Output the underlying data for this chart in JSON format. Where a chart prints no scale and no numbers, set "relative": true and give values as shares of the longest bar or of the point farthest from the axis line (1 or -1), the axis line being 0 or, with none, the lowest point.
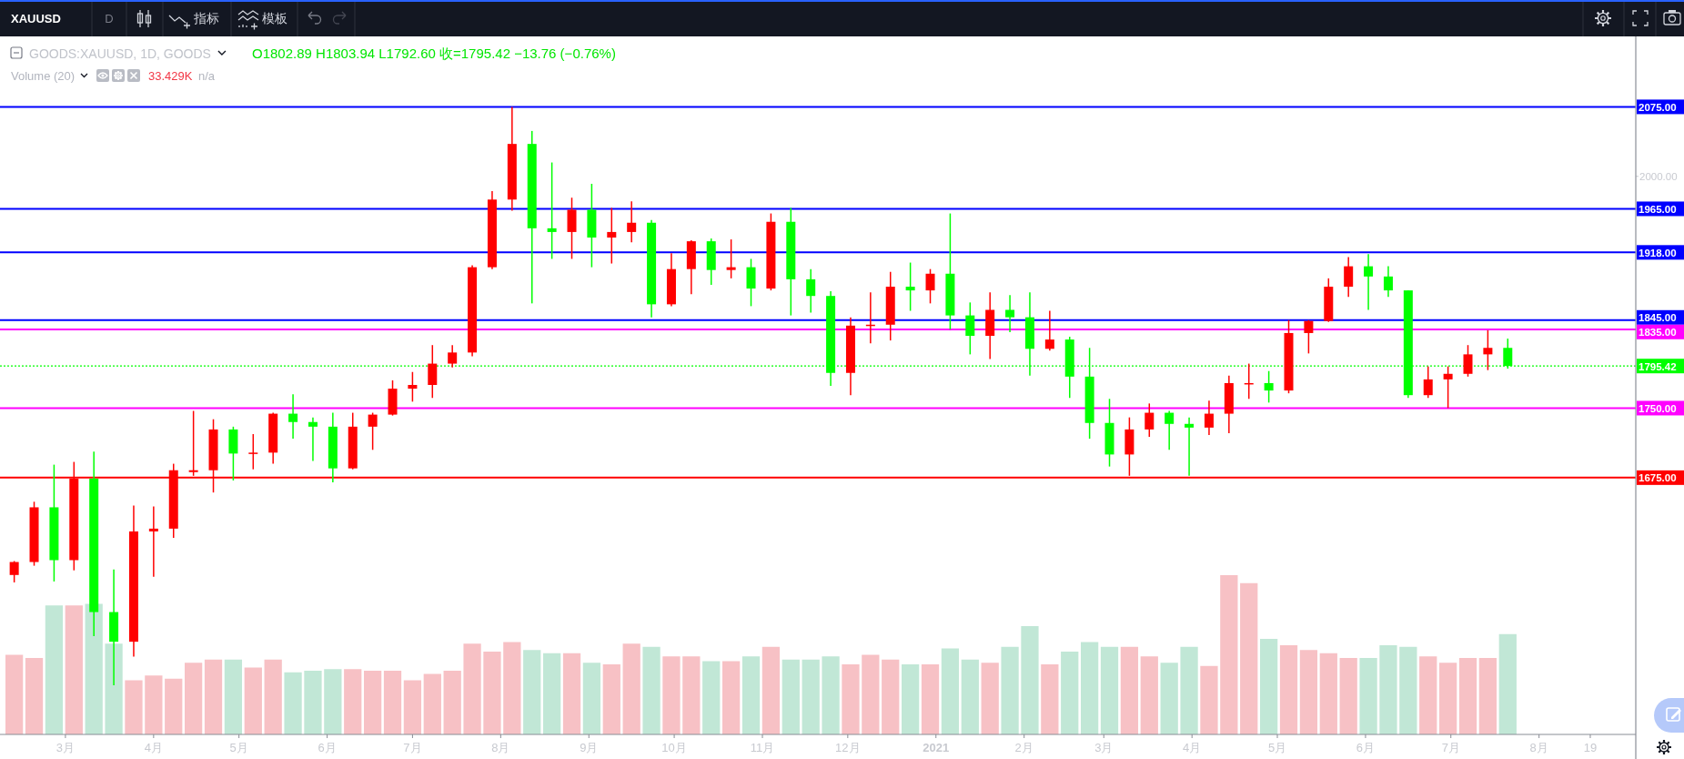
{
  "chart_data": [
    {
      "type": "candlestick",
      "title": "GOODS:XAUUSD, 1D, GOODS",
      "subtitle": "O1802.89 H1803.94 L1792.60 收=1795.42 −13.76 (−0.76%)",
      "annotations": [
        "XAUUSD",
        "D",
        "指标",
        "模板"
      ],
      "x": [
        "2020-02-12",
        "2020-02-19",
        "2020-02-26",
        "2020-03-04",
        "2020-03-11",
        "2020-03-18",
        "2020-03-25",
        "2020-04-01",
        "2020-04-08",
        "2020-04-15",
        "2020-04-22",
        "2020-04-29",
        "2020-05-06",
        "2020-05-13",
        "2020-05-20",
        "2020-05-27",
        "2020-06-03",
        "2020-06-10",
        "2020-06-17",
        "2020-06-24",
        "2020-07-01",
        "2020-07-08",
        "2020-07-15",
        "2020-07-22",
        "2020-07-29",
        "2020-08-05",
        "2020-08-12",
        "2020-08-19",
        "2020-08-26",
        "2020-09-02",
        "2020-09-09",
        "2020-09-16",
        "2020-09-23",
        "2020-09-30",
        "2020-10-07",
        "2020-10-14",
        "2020-10-21",
        "2020-10-28",
        "2020-11-04",
        "2020-11-11",
        "2020-11-18",
        "2020-11-25",
        "2020-12-02",
        "2020-12-09",
        "2020-12-16",
        "2020-12-23",
        "2020-12-30",
        "2021-01-06",
        "2021-01-13",
        "2021-01-20",
        "2021-01-27",
        "2021-02-03",
        "2021-02-10",
        "2021-02-17",
        "2021-02-24",
        "2021-03-03",
        "2021-03-10",
        "2021-03-17",
        "2021-03-24",
        "2021-03-31",
        "2021-04-07",
        "2021-04-14",
        "2021-04-21",
        "2021-04-28",
        "2021-05-05",
        "2021-05-12",
        "2021-05-19",
        "2021-05-26",
        "2021-06-02",
        "2021-06-09",
        "2021-06-16",
        "2021-06-23",
        "2021-06-30",
        "2021-07-07",
        "2021-07-14",
        "2021-07-21"
      ],
      "ohlc": [
        [
          1570,
          1585,
          1562,
          1584
        ],
        [
          1584,
          1649,
          1580,
          1643
        ],
        [
          1643,
          1689,
          1563,
          1586
        ],
        [
          1586,
          1692,
          1575,
          1674
        ],
        [
          1674,
          1703,
          1504,
          1530
        ],
        [
          1530,
          1576,
          1451,
          1498
        ],
        [
          1498,
          1645,
          1482,
          1617
        ],
        [
          1617,
          1644,
          1568,
          1620
        ],
        [
          1620,
          1690,
          1610,
          1683
        ],
        [
          1681,
          1747,
          1677,
          1683
        ],
        [
          1683,
          1738,
          1659,
          1727
        ],
        [
          1727,
          1730,
          1672,
          1701
        ],
        [
          1701,
          1722,
          1684,
          1702
        ],
        [
          1702,
          1745,
          1690,
          1744
        ],
        [
          1744,
          1765,
          1717,
          1735
        ],
        [
          1735,
          1740,
          1693,
          1730
        ],
        [
          1730,
          1745,
          1670,
          1685
        ],
        [
          1685,
          1745,
          1684,
          1730
        ],
        [
          1730,
          1745,
          1705,
          1743
        ],
        [
          1743,
          1780,
          1742,
          1771
        ],
        [
          1771,
          1789,
          1757,
          1775
        ],
        [
          1775,
          1818,
          1761,
          1798
        ],
        [
          1798,
          1818,
          1794,
          1810
        ],
        [
          1810,
          1904,
          1806,
          1902
        ],
        [
          1902,
          1984,
          1900,
          1975
        ],
        [
          1975,
          2075,
          1963,
          2035
        ],
        [
          2035,
          2049,
          1863,
          1944
        ],
        [
          1944,
          2015,
          1911,
          1940
        ],
        [
          1940,
          1977,
          1911,
          1964
        ],
        [
          1964,
          1992,
          1902,
          1934
        ],
        [
          1934,
          1966,
          1906,
          1940
        ],
        [
          1940,
          1973,
          1929,
          1950
        ],
        [
          1950,
          1953,
          1848,
          1862
        ],
        [
          1862,
          1917,
          1860,
          1900
        ],
        [
          1900,
          1931,
          1873,
          1930
        ],
        [
          1930,
          1933,
          1883,
          1899
        ],
        [
          1899,
          1932,
          1890,
          1902
        ],
        [
          1902,
          1911,
          1860,
          1879
        ],
        [
          1879,
          1960,
          1877,
          1951
        ],
        [
          1951,
          1966,
          1850,
          1889
        ],
        [
          1889,
          1900,
          1853,
          1871
        ],
        [
          1871,
          1876,
          1774,
          1788
        ],
        [
          1788,
          1848,
          1764,
          1839
        ],
        [
          1839,
          1875,
          1820,
          1840
        ],
        [
          1840,
          1897,
          1823,
          1881
        ],
        [
          1881,
          1907,
          1855,
          1877
        ],
        [
          1877,
          1900,
          1863,
          1895
        ],
        [
          1895,
          1960,
          1835,
          1850
        ],
        [
          1850,
          1864,
          1808,
          1828
        ],
        [
          1828,
          1875,
          1803,
          1856
        ],
        [
          1856,
          1872,
          1832,
          1848
        ],
        [
          1848,
          1875,
          1785,
          1814
        ],
        [
          1814,
          1855,
          1812,
          1824
        ],
        [
          1824,
          1827,
          1761,
          1784
        ],
        [
          1784,
          1815,
          1717,
          1734
        ],
        [
          1734,
          1760,
          1687,
          1700
        ],
        [
          1700,
          1740,
          1677,
          1727
        ],
        [
          1727,
          1755,
          1719,
          1745
        ],
        [
          1745,
          1747,
          1705,
          1733
        ],
        [
          1733,
          1740,
          1677,
          1729
        ],
        [
          1729,
          1758,
          1721,
          1744
        ],
        [
          1744,
          1785,
          1723,
          1777
        ],
        [
          1776,
          1798,
          1760,
          1777
        ],
        [
          1777,
          1790,
          1756,
          1769
        ],
        [
          1769,
          1845,
          1766,
          1831
        ],
        [
          1831,
          1845,
          1809,
          1844
        ],
        [
          1844,
          1890,
          1843,
          1881
        ],
        [
          1881,
          1913,
          1870,
          1903
        ],
        [
          1903,
          1916,
          1856,
          1892
        ],
        [
          1892,
          1903,
          1870,
          1877
        ],
        [
          1877,
          1877,
          1761,
          1764
        ],
        [
          1764,
          1795,
          1761,
          1781
        ],
        [
          1781,
          1795,
          1750,
          1787
        ],
        [
          1787,
          1818,
          1784,
          1808
        ],
        [
          1808,
          1834,
          1791,
          1815
        ],
        [
          1815,
          1825,
          1792.6,
          1795.42
        ]
      ],
      "colors": [
        "#ff0000",
        "#ff0000",
        "#00ff00",
        "#ff0000",
        "#00ff00",
        "#00ff00",
        "#ff0000",
        "#ff0000",
        "#ff0000",
        "#ff0000",
        "#ff0000",
        "#00ff00",
        "#ff0000",
        "#ff0000",
        "#00ff00",
        "#00ff00",
        "#00ff00",
        "#ff0000",
        "#ff0000",
        "#ff0000",
        "#ff0000",
        "#ff0000",
        "#ff0000",
        "#ff0000",
        "#ff0000",
        "#ff0000",
        "#00ff00",
        "#00ff00",
        "#ff0000",
        "#00ff00",
        "#ff0000",
        "#ff0000",
        "#00ff00",
        "#ff0000",
        "#ff0000",
        "#00ff00",
        "#ff0000",
        "#00ff00",
        "#ff0000",
        "#00ff00",
        "#00ff00",
        "#00ff00",
        "#ff0000",
        "#ff0000",
        "#ff0000",
        "#00ff00",
        "#ff0000",
        "#00ff00",
        "#00ff00",
        "#ff0000",
        "#00ff00",
        "#00ff00",
        "#ff0000",
        "#00ff00",
        "#00ff00",
        "#00ff00",
        "#ff0000",
        "#ff0000",
        "#00ff00",
        "#00ff00",
        "#ff0000",
        "#ff0000",
        "#ff0000",
        "#00ff00",
        "#ff0000",
        "#ff0000",
        "#ff0000",
        "#ff0000",
        "#00ff00",
        "#00ff00",
        "#00ff00",
        "#ff0000",
        "#ff0000",
        "#ff0000",
        "#ff0000",
        "#00ff00"
      ],
      "xlim": [
        "2020-02-07",
        "2021-09-04"
      ],
      "xticks": [
        {
          "value": "2020-03-01",
          "label": "3月"
        },
        {
          "value": "2020-04-01",
          "label": "4月"
        },
        {
          "value": "2020-05-01",
          "label": "5月"
        },
        {
          "value": "2020-06-01",
          "label": "6月"
        },
        {
          "value": "2020-07-01",
          "label": "7月"
        },
        {
          "value": "2020-08-01",
          "label": "8月"
        },
        {
          "value": "2020-09-01",
          "label": "9月"
        },
        {
          "value": "2020-10-01",
          "label": "10月"
        },
        {
          "value": "2020-11-01",
          "label": "11月"
        },
        {
          "value": "2020-12-01",
          "label": "12月"
        },
        {
          "value": "2021-01-01",
          "label": "2021"
        },
        {
          "value": "2021-02-01",
          "label": "2月"
        },
        {
          "value": "2021-03-01",
          "label": "3月"
        },
        {
          "value": "2021-04-01",
          "label": "4月"
        },
        {
          "value": "2021-05-01",
          "label": "5月"
        },
        {
          "value": "2021-06-01",
          "label": "6月"
        },
        {
          "value": "2021-07-01",
          "label": "7月"
        },
        {
          "value": "2021-08-01",
          "label": "8月"
        },
        {
          "value": "2021-08-19",
          "label": "19"
        }
      ],
      "ylim": [
        1398,
        2151
      ],
      "yticks": [
        {
          "value": 2075,
          "label": "2075.00"
        },
        {
          "value": 2000,
          "label": "2000.00"
        },
        {
          "value": 1965,
          "label": "1965.00"
        },
        {
          "value": 1918,
          "label": "1918.00"
        },
        {
          "value": 1845,
          "label": "1845.00"
        },
        {
          "value": 1835,
          "label": "1835.00"
        },
        {
          "value": 1795.42,
          "label": "1795.42"
        },
        {
          "value": 1750,
          "label": "1750.00"
        },
        {
          "value": 1675,
          "label": "1675.00"
        }
      ],
      "ref_lines": [
        {
          "axis": "y",
          "value": 2075,
          "color": "#0000ff"
        },
        {
          "axis": "y",
          "value": 1965,
          "color": "#0000ff"
        },
        {
          "axis": "y",
          "value": 1918,
          "color": "#0000ff"
        },
        {
          "axis": "y",
          "value": 1845,
          "color": "#0000ff"
        },
        {
          "axis": "y",
          "value": 1835,
          "color": "#ff00ff"
        },
        {
          "axis": "y",
          "value": 1795.42,
          "color": "#00ff00",
          "line_style": "dotted"
        },
        {
          "axis": "y",
          "value": 1750,
          "color": "#ff00ff"
        },
        {
          "axis": "y",
          "value": 1675,
          "color": "#ff0000"
        }
      ]
    },
    {
      "type": "bar",
      "relative": true,
      "tick_labels": false,
      "annotations": [
        "33.429K",
        "n/a"
      ],
      "x": [
        "2020-02-12",
        "2020-02-19",
        "2020-02-26",
        "2020-03-04",
        "2020-03-11",
        "2020-03-18",
        "2020-03-25",
        "2020-04-01",
        "2020-04-08",
        "2020-04-15",
        "2020-04-22",
        "2020-04-29",
        "2020-05-06",
        "2020-05-13",
        "2020-05-20",
        "2020-05-27",
        "2020-06-03",
        "2020-06-10",
        "2020-06-17",
        "2020-06-24",
        "2020-07-01",
        "2020-07-08",
        "2020-07-15",
        "2020-07-22",
        "2020-07-29",
        "2020-08-05",
        "2020-08-12",
        "2020-08-19",
        "2020-08-26",
        "2020-09-02",
        "2020-09-09",
        "2020-09-16",
        "2020-09-23",
        "2020-09-30",
        "2020-10-07",
        "2020-10-14",
        "2020-10-21",
        "2020-10-28",
        "2020-11-04",
        "2020-11-11",
        "2020-11-18",
        "2020-11-25",
        "2020-12-02",
        "2020-12-09",
        "2020-12-16",
        "2020-12-23",
        "2020-12-30",
        "2021-01-06",
        "2021-01-13",
        "2021-01-20",
        "2021-01-27",
        "2021-02-03",
        "2021-02-10",
        "2021-02-17",
        "2021-02-24",
        "2021-03-03",
        "2021-03-10",
        "2021-03-17",
        "2021-03-24",
        "2021-03-31",
        "2021-04-07",
        "2021-04-14",
        "2021-04-21",
        "2021-04-28",
        "2021-05-05",
        "2021-05-12",
        "2021-05-19",
        "2021-05-26",
        "2021-06-02",
        "2021-06-09",
        "2021-06-16",
        "2021-06-23",
        "2021-06-30",
        "2021-07-07",
        "2021-07-14",
        "2021-07-21"
      ],
      "xlim": [
        "2020-02-07",
        "2021-09-04"
      ],
      "series": [
        {
          "name": "Volume (20)",
          "values": [
            0.5,
            0.48,
            0.81,
            0.81,
            0.82,
            0.57,
            0.34,
            0.37,
            0.35,
            0.45,
            0.47,
            0.47,
            0.42,
            0.47,
            0.39,
            0.4,
            0.41,
            0.41,
            0.4,
            0.4,
            0.34,
            0.38,
            0.4,
            0.57,
            0.52,
            0.58,
            0.53,
            0.51,
            0.51,
            0.45,
            0.44,
            0.57,
            0.55,
            0.49,
            0.49,
            0.46,
            0.46,
            0.49,
            0.55,
            0.47,
            0.47,
            0.49,
            0.44,
            0.5,
            0.47,
            0.44,
            0.44,
            0.54,
            0.47,
            0.45,
            0.55,
            0.68,
            0.44,
            0.52,
            0.58,
            0.55,
            0.55,
            0.49,
            0.45,
            0.55,
            0.43,
            1,
            0.95,
            0.6,
            0.56,
            0.53,
            0.51,
            0.48,
            0.48,
            0.56,
            0.55,
            0.49,
            0.45,
            0.48,
            0.48,
            0.63
          ],
          "colors": [
            "#f7c1c5",
            "#f7c1c5",
            "#c1e7d6",
            "#f7c1c5",
            "#c1e7d6",
            "#c1e7d6",
            "#f7c1c5",
            "#f7c1c5",
            "#f7c1c5",
            "#f7c1c5",
            "#f7c1c5",
            "#c1e7d6",
            "#f7c1c5",
            "#f7c1c5",
            "#c1e7d6",
            "#c1e7d6",
            "#c1e7d6",
            "#f7c1c5",
            "#f7c1c5",
            "#f7c1c5",
            "#f7c1c5",
            "#f7c1c5",
            "#f7c1c5",
            "#f7c1c5",
            "#f7c1c5",
            "#f7c1c5",
            "#c1e7d6",
            "#c1e7d6",
            "#f7c1c5",
            "#c1e7d6",
            "#f7c1c5",
            "#f7c1c5",
            "#c1e7d6",
            "#f7c1c5",
            "#f7c1c5",
            "#c1e7d6",
            "#f7c1c5",
            "#c1e7d6",
            "#f7c1c5",
            "#c1e7d6",
            "#c1e7d6",
            "#c1e7d6",
            "#f7c1c5",
            "#f7c1c5",
            "#f7c1c5",
            "#c1e7d6",
            "#f7c1c5",
            "#c1e7d6",
            "#c1e7d6",
            "#f7c1c5",
            "#c1e7d6",
            "#c1e7d6",
            "#f7c1c5",
            "#c1e7d6",
            "#c1e7d6",
            "#c1e7d6",
            "#f7c1c5",
            "#f7c1c5",
            "#c1e7d6",
            "#c1e7d6",
            "#f7c1c5",
            "#f7c1c5",
            "#f7c1c5",
            "#c1e7d6",
            "#f7c1c5",
            "#f7c1c5",
            "#f7c1c5",
            "#f7c1c5",
            "#c1e7d6",
            "#c1e7d6",
            "#c1e7d6",
            "#f7c1c5",
            "#f7c1c5",
            "#f7c1c5",
            "#f7c1c5",
            "#c1e7d6"
          ]
        }
      ]
    }
  ]
}
